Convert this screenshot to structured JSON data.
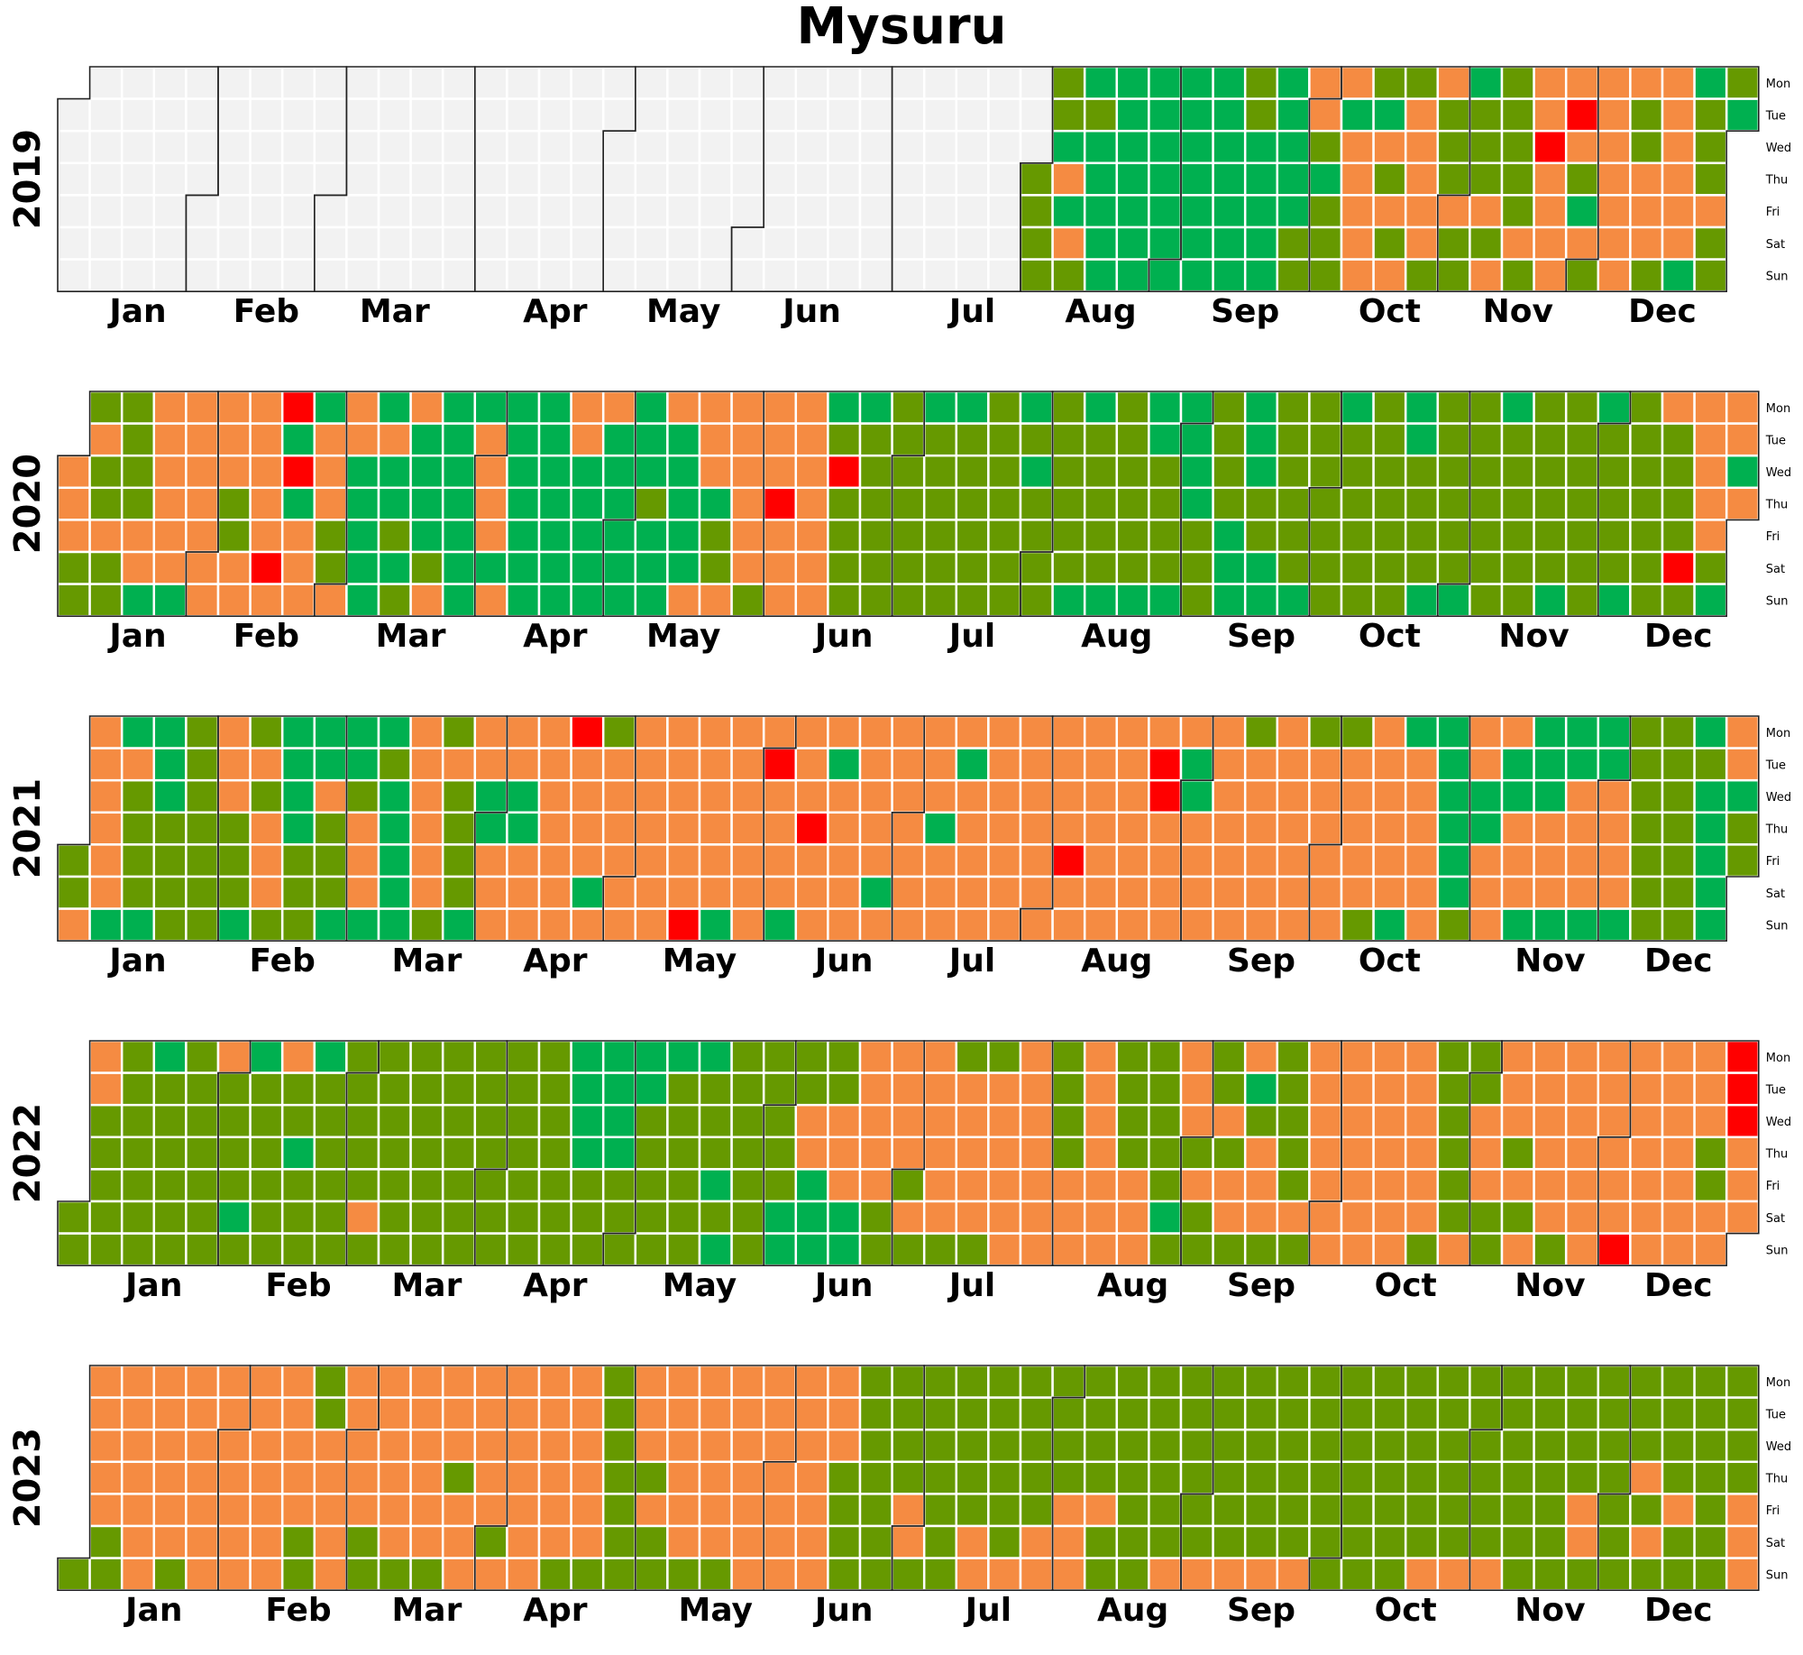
{
  "chart_data": {
    "type": "heatmap",
    "title": "Mysuru",
    "weekday_labels": [
      "Mon",
      "Tue",
      "Wed",
      "Thu",
      "Fri",
      "Sat",
      "Sun"
    ],
    "month_labels": [
      "Jan",
      "Feb",
      "Mar",
      "Apr",
      "May",
      "Jun",
      "Jul",
      "Aug",
      "Sep",
      "Oct",
      "Nov",
      "Dec"
    ],
    "years": [
      "2019",
      "2020",
      "2021",
      "2022",
      "2023"
    ],
    "colors": {
      "1": "#00b050",
      "2": "#669900",
      "3": "#f58b42",
      "4": "#ff0000",
      "5": "#7b3a36",
      "none": "#f2f2f2"
    },
    "data_start": "2019-08-01",
    "weekly_categories": [
      "2222222",
      "2213132",
      "1211111",
      "1111111",
      "1111111",
      "1111111",
      "1111111",
      "2211111",
      "1111122",
      "3321222",
      "3133333",
      "2132323",
      "2333332",
      "3222322",
      "1222323",
      "2222232",
      "3343333",
      "3432132",
      "3333333",
      "3223332",
      "3333331",
      "1222322",
      "2133322",
      "2322322",
      "2222331",
      "3333331",
      "3333333",
      "3332233",
      "3333343",
      "4141333",
      "1333223",
      "3311111",
      "1311212",
      "3111123",
      "1111111",
      "1333313",
      "1111111",
      "1111111",
      "3311111",
      "3111111",
      "1112111",
      "3111113",
      "3331223",
      "3333332",
      "3334333",
      "3333333",
      "1242222",
      "1222222",
      "2222222",
      "1222222",
      "1222222",
      "2222222",
      "1212222",
      "2222221",
      "1222221",
      "2222221",
      "1122221",
      "1111222",
      "2222111",
      "1112211",
      "2222221",
      "2222222",
      "1222222",
      "2222222",
      "1122221",
      "2222221",
      "2222222",
      "1222222",
      "2222221",
      "2222222",
      "1222221",
      "2222222",
      "3222242",
      "3333321",
      "3313223",
      "3333331",
      "1322221",
      "1112222",
      "2222222",
      "3332221",
      "2323332",
      "1111222",
      "1132221",
      "1123331",
      "1211111",
      "3333332",
      "2322221",
      "3311333",
      "3311333",
      "3333333",
      "4333313",
      "2333333",
      "3333333",
      "3333334",
      "3333331",
      "3333333",
      "3433331",
      "3334333",
      "3133333",
      "3333313",
      "3333333",
      "3331333",
      "3133333",
      "3333333",
      "3333333",
      "3333433",
      "3333333",
      "3333333",
      "3443333",
      "3113333",
      "3333333",
      "2333333",
      "3333333",
      "2333333",
      "2333332",
      "3333331",
      "1333333",
      "1111112",
      "3311333",
      "3113331",
      "1113331",
      "1133331",
      "1133331",
      "2222222",
      "2222222",
      "1211111",
      "3312222",
      "3322222",
      "2222222",
      "1222222",
      "2222222",
      "3222212",
      "1222222",
      "3221222",
      "1222222",
      "2222232",
      "2222222",
      "2222222",
      "2222222",
      "2222222",
      "2222222",
      "2222222",
      "1111222",
      "1111222",
      "1122222",
      "1222222",
      "1222121",
      "2222222",
      "2222211",
      "2233111",
      "2233311",
      "3333322",
      "3333232",
      "3333332",
      "2333332",
      "2333333",
      "3333333",
      "2222333",
      "3333333",
      "2222333",
      "2222212",
      "3332322",
      "2232332",
      "3123332",
      "2222232",
      "3333333",
      "3333333",
      "3333333",
      "3333332",
      "2222223",
      "2233322",
      "3332323",
      "3333332",
      "3333333",
      "3333334",
      "3333333",
      "3333333",
      "3332233",
      "4443332",
      "3333322",
      "3333333",
      "3333332",
      "3333333",
      "3333333",
      "3333333",
      "3333322",
      "2233333",
      "3333322",
      "3333332",
      "3333332",
      "3332333",
      "3333323",
      "3333333",
      "3333332",
      "3333332",
      "2222222",
      "3332322",
      "3333332",
      "3333332",
      "3333333",
      "3333333",
      "3333333",
      "3332222",
      "2222222",
      "2222332",
      "2222222",
      "2222233",
      "2222223",
      "2222233",
      "2222333",
      "2222322",
      "2222222",
      "2222223",
      "2222223",
      "2222223",
      "2222223",
      "2222223",
      "2222222",
      "2222222",
      "2222222",
      "2222223",
      "2222223",
      "2222223",
      "2222222",
      "2222222",
      "2222332",
      "2222222",
      "2223232",
      "2222322",
      "2222222",
      "2222333",
      "2222222",
      "3322222",
      "3332222",
      "2333222",
      "3333223",
      "3333222",
      "3333222",
      "3333333",
      "2222332",
      "2222333",
      "2222223",
      "2322222",
      "2333222",
      "3333333",
      "3333333",
      "2222222",
      "3333333",
      "3333333",
      "2332222",
      "3333333",
      "3333333",
      "3333333",
      "3333332",
      "2223333",
      "3333333",
      "3333333",
      "3333333",
      "3333333",
      "3333333",
      "2222222",
      "3333333",
      "3333323",
      "3333332",
      "3333333",
      "3333333",
      "3333333",
      "3333333",
      "3333333",
      "3333332",
      "2222222",
      "3333333",
      "3333333",
      "3333333",
      "3333333",
      "3333333",
      "3333333",
      "3333332",
      "2333332",
      "3333333",
      "3333333",
      "3333333",
      "3333333",
      "3333333",
      "3333333",
      "3333332",
      "2333333",
      "3333333",
      "3333333",
      "3333333",
      "3333333",
      "3333333",
      "3333333",
      "3333333",
      "3333333",
      "3333333",
      "2222222",
      "3333333",
      "3333333",
      "3333333",
      "3333333",
      "3333333",
      "3333333",
      "3333333",
      "3333333",
      "3333333",
      "3333333",
      "3333333",
      "3333333",
      "3333333",
      "3333333",
      "3333333",
      "3333333",
      "3333333",
      "3333333",
      "3333333",
      "3333333",
      "3333333",
      "3333333",
      "3333333",
      "3333333",
      "3333333",
      "3333333",
      "3333333",
      "3333333",
      "3333333"
    ]
  }
}
